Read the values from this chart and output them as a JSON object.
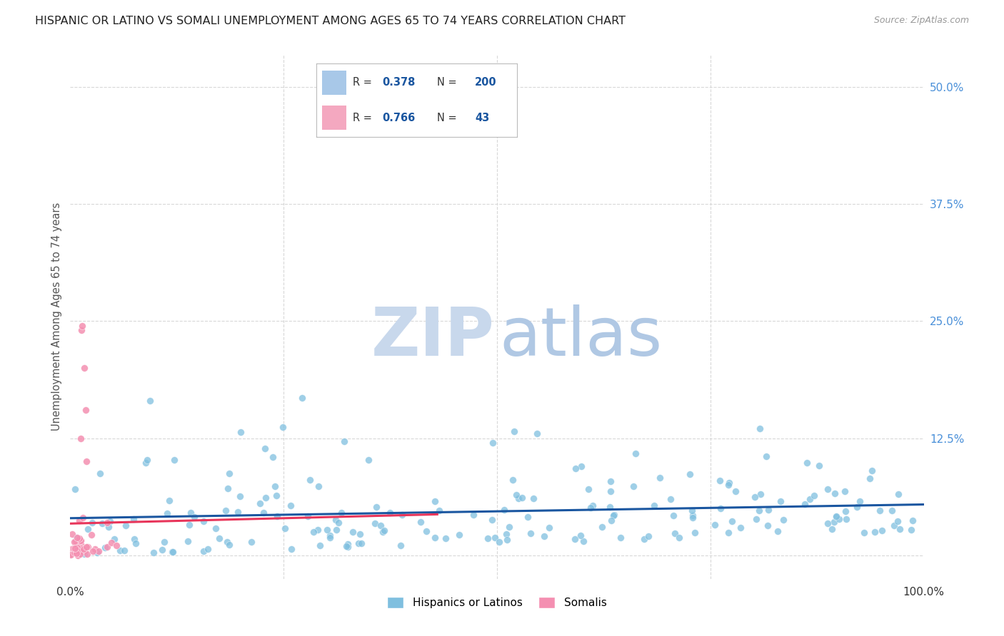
{
  "title": "HISPANIC OR LATINO VS SOMALI UNEMPLOYMENT AMONG AGES 65 TO 74 YEARS CORRELATION CHART",
  "source": "Source: ZipAtlas.com",
  "ylabel_label": "Unemployment Among Ages 65 to 74 years",
  "blue_scatter_color": "#7fbfdf",
  "pink_scatter_color": "#f48fb1",
  "blue_line_color": "#1a56a0",
  "pink_line_color": "#e8355a",
  "legend_blue_box": "#a8c8e8",
  "legend_pink_box": "#f4a8c0",
  "watermark_zip_color": "#c8d8ec",
  "watermark_atlas_color": "#b0c8e4",
  "background_color": "#ffffff",
  "grid_color": "#d8d8d8",
  "title_color": "#222222",
  "title_fontsize": 11.5,
  "ytick_color": "#4a90d9",
  "source_color": "#999999",
  "xlim": [
    0.0,
    1.0
  ],
  "ylim": [
    -0.025,
    0.535
  ],
  "blue_R": 0.378,
  "blue_N": 200,
  "pink_R": 0.766,
  "pink_N": 43,
  "blue_seed": 42,
  "pink_seed": 7
}
